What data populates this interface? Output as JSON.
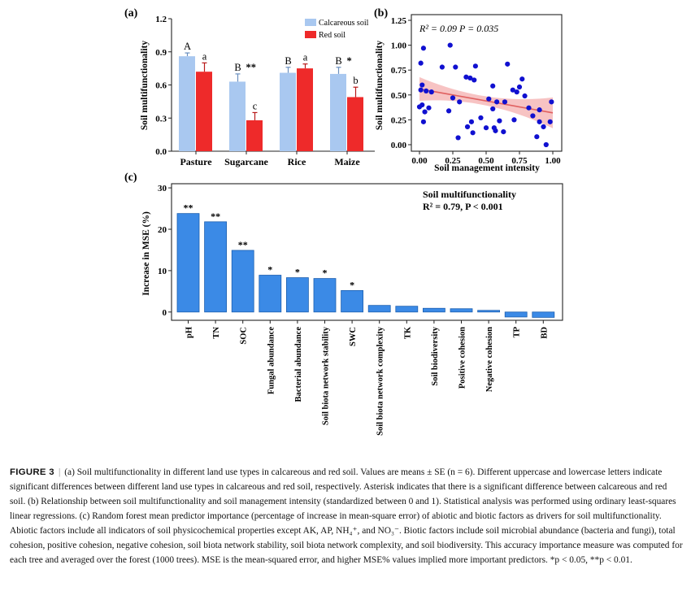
{
  "figure": {
    "caption_label": "FIGURE 3",
    "caption_separator": "|",
    "caption_text": "(a) Soil multifunctionality in different land use types in calcareous and red soil. Values are means ± SE (n = 6). Different uppercase and lowercase letters indicate significant differences between different land use types in calcareous and red soil, respectively. Asterisk indicates that there is a significant difference between calcareous and red soil. (b) Relationship between soil multifunctionality and soil management intensity (standardized between 0 and 1). Statistical analysis was performed using ordinary least-squares linear regressions. (c) Random forest mean predictor importance (percentage of increase in mean-square error) of abiotic and biotic factors as drivers for soil multifunctionality. Abiotic factors include all indicators of soil physicochemical properties except AK, AP, NH₄⁺, and NO₃⁻. Biotic factors include soil microbial abundance (bacteria and fungi), total cohesion, positive cohesion, negative cohesion, soil biota network stability, soil biota network complexity, and soil biodiversity. This accuracy importance measure was computed for each tree and averaged over the forest (1000 trees). MSE is the mean-squared error, and higher MSE% values implied more important predictors. *p < 0.05, **p < 0.01."
  },
  "chart_data": [
    {
      "panel": "(a)",
      "type": "bar",
      "ylabel": "Soil multifunctionality",
      "xlabel": "",
      "ylim": [
        0,
        1.2
      ],
      "yticks": [
        "0.0",
        "0.3",
        "0.6",
        "0.9",
        "1.2"
      ],
      "categories": [
        "Pasture",
        "Sugarcane",
        "Rice",
        "Maize"
      ],
      "series": [
        {
          "name": "Calcareous soil",
          "color": "#a9c8f0",
          "values": [
            0.86,
            0.63,
            0.71,
            0.7
          ],
          "errors": [
            0.03,
            0.07,
            0.05,
            0.06
          ],
          "letters": [
            "A",
            "B",
            "B",
            "B"
          ]
        },
        {
          "name": "Red soil",
          "color": "#ee2a2a",
          "values": [
            0.72,
            0.28,
            0.75,
            0.49
          ],
          "errors": [
            0.08,
            0.07,
            0.04,
            0.09
          ],
          "letters": [
            "a",
            "c",
            "a",
            "b"
          ]
        }
      ],
      "significance": [
        "",
        "**",
        "",
        "*"
      ],
      "legend_position": "top-right"
    },
    {
      "panel": "(b)",
      "type": "scatter",
      "xlabel": "Soil management intensity",
      "ylabel": "Soil multifunctionality",
      "xlim": [
        0,
        1
      ],
      "ylim": [
        0,
        1.25
      ],
      "xticks": [
        "0.00",
        "0.25",
        "0.50",
        "0.75",
        "1.00"
      ],
      "yticks": [
        "0.00",
        "0.25",
        "0.50",
        "0.75",
        "1.00",
        "1.25"
      ],
      "annotation": "R² = 0.09   P = 0.035",
      "point_color": "#1010d0",
      "line_color": "#e06060",
      "band_color": "#f6b8b8",
      "fit": {
        "intercept": 0.56,
        "slope": -0.24
      },
      "points": [
        [
          0.0,
          0.38
        ],
        [
          0.01,
          0.82
        ],
        [
          0.01,
          0.55
        ],
        [
          0.02,
          0.6
        ],
        [
          0.02,
          0.4
        ],
        [
          0.03,
          0.97
        ],
        [
          0.03,
          0.23
        ],
        [
          0.04,
          0.33
        ],
        [
          0.05,
          0.54
        ],
        [
          0.07,
          0.37
        ],
        [
          0.09,
          0.53
        ],
        [
          0.17,
          0.78
        ],
        [
          0.22,
          0.34
        ],
        [
          0.23,
          1.0
        ],
        [
          0.25,
          0.47
        ],
        [
          0.27,
          0.78
        ],
        [
          0.29,
          0.07
        ],
        [
          0.3,
          0.43
        ],
        [
          0.35,
          0.68
        ],
        [
          0.36,
          0.18
        ],
        [
          0.38,
          0.67
        ],
        [
          0.39,
          0.23
        ],
        [
          0.4,
          0.12
        ],
        [
          0.41,
          0.65
        ],
        [
          0.42,
          0.79
        ],
        [
          0.46,
          0.27
        ],
        [
          0.5,
          0.17
        ],
        [
          0.52,
          0.46
        ],
        [
          0.55,
          0.36
        ],
        [
          0.55,
          0.59
        ],
        [
          0.56,
          0.17
        ],
        [
          0.57,
          0.14
        ],
        [
          0.58,
          0.43
        ],
        [
          0.6,
          0.24
        ],
        [
          0.63,
          0.13
        ],
        [
          0.64,
          0.43
        ],
        [
          0.66,
          0.81
        ],
        [
          0.7,
          0.55
        ],
        [
          0.71,
          0.25
        ],
        [
          0.73,
          0.53
        ],
        [
          0.75,
          0.58
        ],
        [
          0.77,
          0.66
        ],
        [
          0.79,
          0.49
        ],
        [
          0.82,
          0.37
        ],
        [
          0.85,
          0.29
        ],
        [
          0.88,
          0.08
        ],
        [
          0.9,
          0.23
        ],
        [
          0.9,
          0.35
        ],
        [
          0.93,
          0.18
        ],
        [
          0.95,
          0.0
        ],
        [
          0.98,
          0.23
        ],
        [
          0.99,
          0.43
        ]
      ]
    },
    {
      "panel": "(c)",
      "type": "bar",
      "title": "Soil multifunctionality",
      "subtitle": "R² = 0.79, P < 0.001",
      "ylabel": "Increase in MSE (%)",
      "xlabel": "",
      "ylim": [
        -2,
        31
      ],
      "yticks": [
        "0",
        "10",
        "20",
        "30"
      ],
      "bar_color": "#3b8ae6",
      "categories": [
        "pH",
        "TN",
        "SOC",
        "Fungal abundance",
        "Bacterial abundance",
        "Soil biota network stability",
        "SWC",
        "Soil biota network complexity",
        "TK",
        "Soil biodiversity",
        "Positive cohesion",
        "Negative cohesion",
        "TP",
        "BD"
      ],
      "values": [
        23.8,
        21.8,
        14.9,
        8.9,
        8.3,
        8.1,
        5.2,
        1.6,
        1.4,
        0.9,
        0.8,
        0.4,
        -1.2,
        -1.3
      ],
      "significance": [
        "**",
        "**",
        "**",
        "*",
        "*",
        "*",
        "*",
        "",
        "",
        "",
        "",
        "",
        "",
        ""
      ]
    }
  ]
}
